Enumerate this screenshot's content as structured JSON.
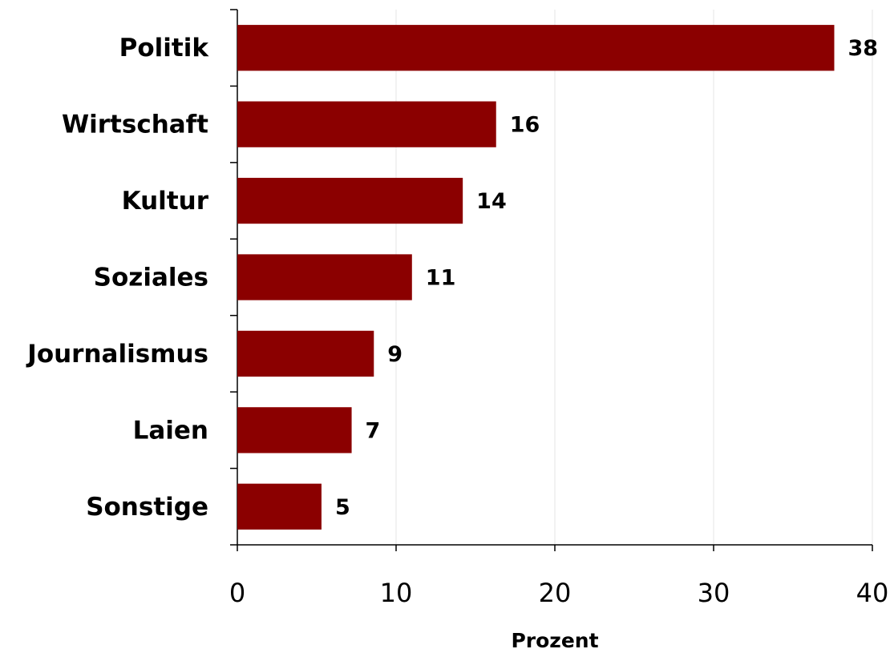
{
  "chart_data": {
    "type": "bar",
    "orientation": "horizontal",
    "categories": [
      "Politik",
      "Wirtschaft",
      "Kultur",
      "Soziales",
      "Journalismus",
      "Laien",
      "Sonstige"
    ],
    "values": [
      37.6,
      16.3,
      14.2,
      11.0,
      8.6,
      7.2,
      5.3
    ],
    "value_labels": [
      "38",
      "16",
      "14",
      "11",
      "9",
      "7",
      "5"
    ],
    "color": "#8b0000",
    "xlabel": "Prozent",
    "xlim": [
      0,
      40
    ],
    "xticks": [
      0,
      10,
      20,
      30,
      40
    ],
    "grid": true
  }
}
